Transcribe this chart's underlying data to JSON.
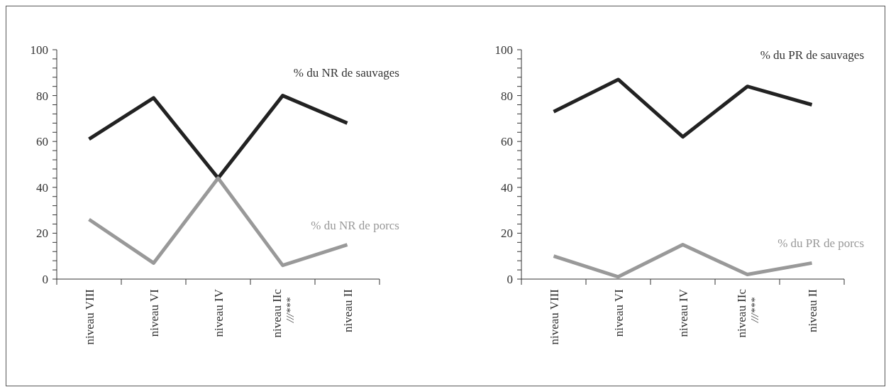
{
  "chart_data": [
    {
      "type": "line",
      "categories": [
        "niveau VIII",
        "niveau VI",
        "niveau IV",
        "niveau IIc\n///***",
        "niveau II"
      ],
      "series": [
        {
          "name": "% du NR de sauvages",
          "color": "#222222",
          "values": [
            61,
            79,
            44,
            80,
            68
          ]
        },
        {
          "name": "% du NR de porcs",
          "color": "#999999",
          "values": [
            26,
            7,
            44,
            6,
            15
          ]
        }
      ],
      "ylim": [
        0,
        100
      ],
      "yticks": [
        0,
        {
          "value": 4,
          "label": null
        },
        {
          "value": 8,
          "label": null
        },
        {
          "value": 12,
          "label": null
        },
        {
          "value": 16,
          "label": null
        },
        20,
        {
          "value": 24,
          "label": null
        },
        {
          "value": 28,
          "label": null
        },
        {
          "value": 32,
          "label": null
        },
        {
          "value": 36,
          "label": null
        },
        40,
        {
          "value": 44,
          "label": null
        },
        {
          "value": 48,
          "label": null
        },
        {
          "value": 52,
          "label": null
        },
        {
          "value": 56,
          "label": null
        },
        60,
        {
          "value": 64,
          "label": null
        },
        {
          "value": 68,
          "label": null
        },
        {
          "value": 72,
          "label": null
        },
        {
          "value": 76,
          "label": null
        },
        80,
        {
          "value": 84,
          "label": null
        },
        {
          "value": 88,
          "label": null
        },
        {
          "value": 92,
          "label": null
        },
        {
          "value": 96,
          "label": null
        },
        100
      ],
      "grid": false,
      "marker": "none",
      "line_style": "solid"
    },
    {
      "type": "line",
      "categories": [
        "niveau VIII",
        "niveau VI",
        "niveau IV",
        "niveau IIc\n///***",
        "niveau II"
      ],
      "series": [
        {
          "name": "% du PR de sauvages",
          "color": "#222222",
          "values": [
            73,
            87,
            62,
            84,
            76
          ]
        },
        {
          "name": "% du PR de porcs",
          "color": "#999999",
          "values": [
            10,
            1,
            15,
            2,
            7
          ]
        }
      ],
      "ylim": [
        0,
        100
      ],
      "yticks": [
        0,
        {
          "value": 4,
          "label": null
        },
        {
          "value": 8,
          "label": null
        },
        {
          "value": 12,
          "label": null
        },
        {
          "value": 16,
          "label": null
        },
        20,
        {
          "value": 24,
          "label": null
        },
        {
          "value": 28,
          "label": null
        },
        {
          "value": 32,
          "label": null
        },
        {
          "value": 36,
          "label": null
        },
        40,
        {
          "value": 44,
          "label": null
        },
        {
          "value": 48,
          "label": null
        },
        {
          "value": 52,
          "label": null
        },
        {
          "value": 56,
          "label": null
        },
        60,
        {
          "value": 64,
          "label": null
        },
        {
          "value": 68,
          "label": null
        },
        {
          "value": 72,
          "label": null
        },
        {
          "value": 76,
          "label": null
        },
        80,
        {
          "value": 84,
          "label": null
        },
        {
          "value": 88,
          "label": null
        },
        {
          "value": 92,
          "label": null
        },
        {
          "value": 96,
          "label": null
        },
        100
      ],
      "grid": false,
      "marker": "none",
      "line_style": "solid"
    }
  ]
}
